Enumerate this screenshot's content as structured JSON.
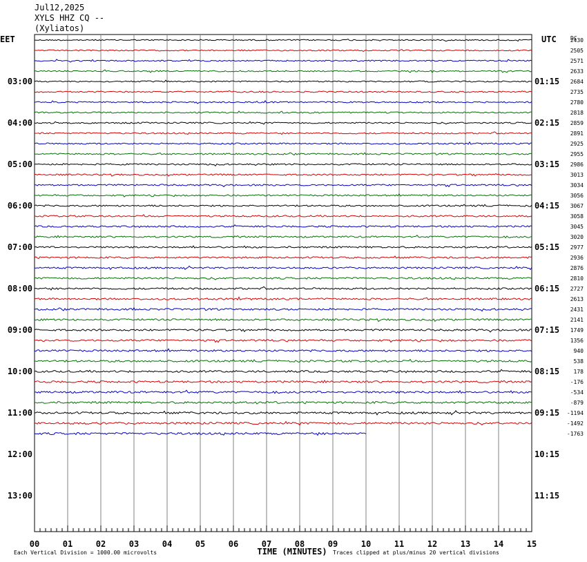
{
  "header": {
    "date": "Jul12,2025",
    "station": "XYLS HHZ CQ --",
    "location": "(Xyliatos)"
  },
  "chart_data": {
    "type": "line",
    "title": "XYLS HHZ CQ --",
    "left_timezone": "EET",
    "right_timezone": "UTC",
    "dc_label": "DC",
    "left_hour_labels": [
      "03:00",
      "04:00",
      "05:00",
      "06:00",
      "07:00",
      "08:00",
      "09:00",
      "10:00",
      "11:00",
      "12:00",
      "13:00"
    ],
    "right_hour_labels": [
      "01:15",
      "02:15",
      "03:15",
      "04:15",
      "05:15",
      "06:15",
      "07:15",
      "08:15",
      "09:15",
      "10:15",
      "11:15"
    ],
    "dc_offsets": [
      "2430",
      "2505",
      "2571",
      "2633",
      "2684",
      "2735",
      "2780",
      "2818",
      "2859",
      "2891",
      "2925",
      "2955",
      "2986",
      "3013",
      "3034",
      "3056",
      "3067",
      "3058",
      "3045",
      "3020",
      "2977",
      "2936",
      "2876",
      "2810",
      "2727",
      "2613",
      "2431",
      "2141",
      "1749",
      "1356",
      "940",
      "538",
      "178",
      "-176",
      "-534",
      "-879",
      "-1194",
      "-1492",
      "-1763"
    ],
    "trace_colors": [
      "#000000",
      "#d40000",
      "#0000c0",
      "#007000"
    ],
    "trace_count": 39,
    "last_trace_end_minute": 10,
    "xlabel": "TIME (MINUTES)",
    "x_ticks": [
      "00",
      "01",
      "02",
      "03",
      "04",
      "05",
      "06",
      "07",
      "08",
      "09",
      "10",
      "11",
      "12",
      "13",
      "14",
      "15"
    ],
    "xlim": [
      0,
      15
    ],
    "footer_left": "Each Vertical Division = 1000.00 microvolts",
    "footer_right": "Traces clipped at plus/minus 20 vertical divisions"
  }
}
